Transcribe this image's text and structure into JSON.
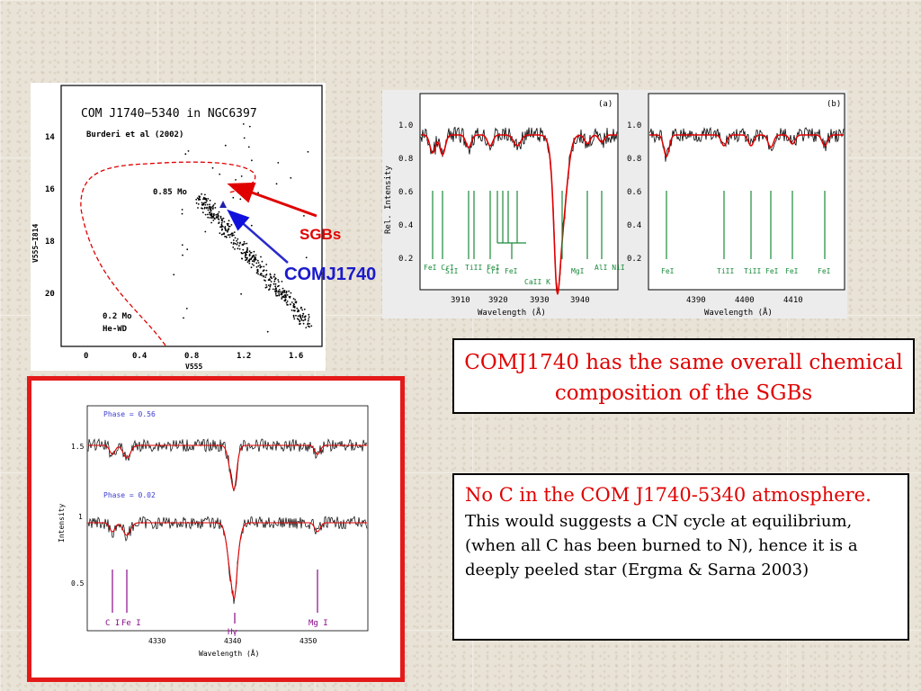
{
  "cmd": {
    "title": "COM J1740−5340 in NGC6397",
    "reference": "Burderi et al (2002)",
    "label_085": "0.85 Mo",
    "label_02": "0.2 Mo",
    "label_hewd": "He-WD",
    "yticks": [
      "14",
      "16",
      "18",
      "20"
    ],
    "xticks": [
      "0",
      "0.4",
      "0.8",
      "1.2",
      "1.6"
    ],
    "ylabel": "V555−I814",
    "xlabel": "V555"
  },
  "callouts": {
    "sgbs": "SGBs",
    "comj": "COMJ1740"
  },
  "spectrum_a": {
    "tag": "(a)",
    "ylabel": "Rel. Intensity",
    "xlabel": "Wavelength (Å)",
    "yticks": [
      "1.0",
      "0.8",
      "0.6",
      "0.4",
      "0.2"
    ],
    "xticks": [
      "3910",
      "3920",
      "3930",
      "3940"
    ],
    "lines": [
      "FeI CrI",
      "SiI",
      "TiII FeI",
      "CrI",
      "FeI",
      "CaII K",
      "MgI",
      "AlI NiI"
    ]
  },
  "spectrum_b": {
    "tag": "(b)",
    "xlabel": "Wavelength (Å)",
    "yticks": [
      "1.0",
      "0.8",
      "0.6",
      "0.4",
      "0.2"
    ],
    "xticks": [
      "4390",
      "4400",
      "4410"
    ],
    "lines": [
      "FeI",
      "TiII",
      "TiII",
      "FeI",
      "FeI",
      "FeI"
    ]
  },
  "phase_panel": {
    "phase1": "Phase = 0.56",
    "phase2": "Phase = 0.02",
    "ylabel": "Intensity",
    "xlabel": "Wavelength (Å)",
    "yticks": [
      "1.5",
      "1",
      "0.5"
    ],
    "xticks": [
      "4330",
      "4340",
      "4350"
    ],
    "lines": [
      "C I",
      "Fe I",
      "Hγ",
      "Mg I"
    ]
  },
  "box1": {
    "text": "COMJ1740 has the same overall chemical composition of the SGBs"
  },
  "box2": {
    "heading": "No C in the  COM J1740-5340 atmosphere.",
    "body": "This would suggests a CN cycle at equilibrium, (when all C has been burned to N), hence it is  a deeply peeled star (Ergma & Sarna 2003)"
  },
  "colors": {
    "accent_red": "#e00000",
    "arrow_blue": "#1010dd",
    "line_green": "#1a8a3a",
    "line_purple": "#8a0a8a"
  }
}
